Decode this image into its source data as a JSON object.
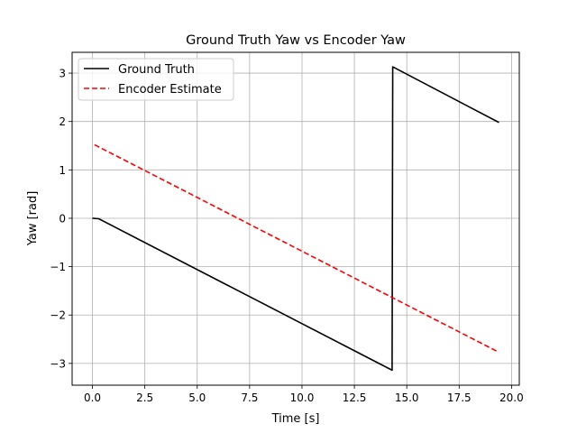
{
  "chart_data": {
    "type": "line",
    "title": "Ground Truth Yaw vs Encoder Yaw",
    "xlabel": "Time [s]",
    "ylabel": "Yaw [rad]",
    "xlim": [
      -0.97,
      20.37
    ],
    "ylim": [
      -3.45,
      3.43
    ],
    "grid": true,
    "legend_placement": "top-left",
    "x_ticks": [
      0.0,
      2.5,
      5.0,
      7.5,
      10.0,
      12.5,
      15.0,
      17.5,
      20.0
    ],
    "x_tick_labels": [
      "0.0",
      "2.5",
      "5.0",
      "7.5",
      "10.0",
      "12.5",
      "15.0",
      "17.5",
      "20.0"
    ],
    "y_ticks": [
      -3,
      -2,
      -1,
      0,
      1,
      2,
      3
    ],
    "y_tick_labels": [
      "−3",
      "−2",
      "−1",
      "0",
      "1",
      "2",
      "3"
    ],
    "series": [
      {
        "name": "Ground Truth",
        "color": "#000000",
        "style": "solid",
        "x": [
          0.0,
          0.3,
          14.3,
          14.33,
          19.4
        ],
        "y": [
          0.0,
          -0.01,
          -3.14,
          3.13,
          1.98
        ]
      },
      {
        "name": "Encoder Estimate",
        "color": "#ff0000",
        "style": "dashed",
        "x": [
          0.1,
          19.4
        ],
        "y": [
          1.52,
          -2.77
        ]
      }
    ]
  }
}
